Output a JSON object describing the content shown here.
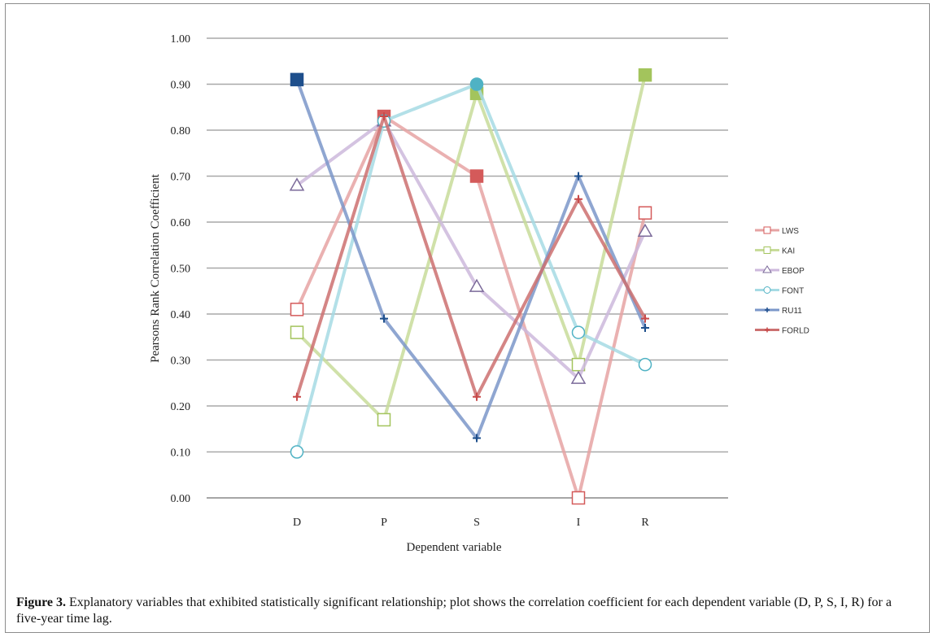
{
  "chart_data": {
    "type": "line",
    "xlabel": "Dependent variable",
    "ylabel": "Pearsons Rank Correlation Coefficient",
    "categories": [
      "D",
      "P",
      "S",
      "I",
      "R"
    ],
    "ylim": [
      0,
      1
    ],
    "yticks": [
      "0.00",
      "0.10",
      "0.20",
      "0.30",
      "0.40",
      "0.50",
      "0.60",
      "0.70",
      "0.80",
      "0.90",
      "1.00"
    ],
    "grid": true,
    "legend_position": "right",
    "series": [
      {
        "name": "LWS",
        "color": "#e6a3a3",
        "marker": "square",
        "marker_color": "#d45a5a",
        "values": [
          0.41,
          0.83,
          0.7,
          0.0,
          0.62
        ],
        "filled": [
          false,
          true,
          true,
          false,
          false
        ]
      },
      {
        "name": "KAI",
        "color": "#c8dc9a",
        "marker": "square",
        "marker_color": "#a3c45c",
        "values": [
          0.36,
          0.17,
          0.88,
          0.29,
          0.92
        ],
        "filled": [
          false,
          false,
          true,
          false,
          true
        ]
      },
      {
        "name": "EBOP",
        "color": "#cdb8dc",
        "marker": "triangle",
        "marker_color": "#7b6a9a",
        "values": [
          0.68,
          0.82,
          0.46,
          0.26,
          0.58
        ],
        "filled": [
          false,
          false,
          false,
          false,
          false
        ]
      },
      {
        "name": "FONT",
        "color": "#a6dbe4",
        "marker": "circle",
        "marker_color": "#4fb2c4",
        "values": [
          0.1,
          0.82,
          0.9,
          0.36,
          0.29
        ],
        "filled": [
          false,
          false,
          true,
          false,
          false
        ]
      },
      {
        "name": "RU11",
        "color": "#7b97c9",
        "marker": "plus",
        "marker_color": "#1e4f8c",
        "values": [
          0.91,
          0.39,
          0.13,
          0.7,
          0.37
        ],
        "filled": [
          true,
          false,
          false,
          false,
          false
        ]
      },
      {
        "name": "FORLD",
        "color": "#cc7070",
        "marker": "plus",
        "marker_color": "#c84a4a",
        "values": [
          0.22,
          0.83,
          0.22,
          0.65,
          0.39
        ],
        "filled": [
          false,
          false,
          false,
          false,
          false
        ]
      }
    ]
  },
  "caption": {
    "label": "Figure 3.",
    "text": "Explanatory variables that exhibited statistically significant relationship; plot shows the correlation coefficient for each dependent variable (D, P, S, I, R) for a five-year time lag."
  }
}
